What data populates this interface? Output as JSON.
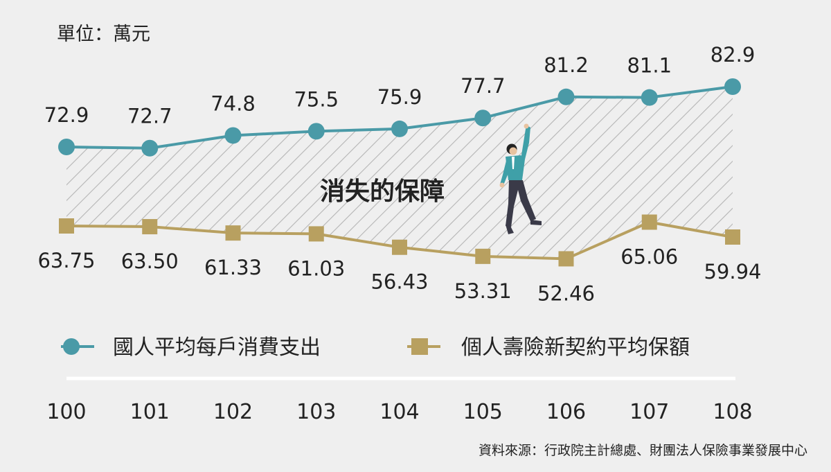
{
  "unit_label": "單位：萬元",
  "area_label": "消失的保障",
  "source": "資料來源：行政院主計總處、財團法人保險事業發展中心",
  "colors": {
    "background": "#efefef",
    "series1": "#4a9aa7",
    "series2": "#b8a060",
    "hatch": "#b5b5b5",
    "text": "#222222",
    "figure_jacket": "#3fa0a8",
    "figure_pants": "#3a3a48"
  },
  "chart_data": {
    "type": "line",
    "categories": [
      "100",
      "101",
      "102",
      "103",
      "104",
      "105",
      "106",
      "107",
      "108"
    ],
    "series": [
      {
        "name": "國人平均每戶消費支出",
        "values": [
          72.9,
          72.7,
          74.8,
          75.5,
          75.9,
          77.7,
          81.2,
          81.1,
          82.9
        ],
        "labels": [
          "72.9",
          "72.7",
          "74.8",
          "75.5",
          "75.9",
          "77.7",
          "81.2",
          "81.1",
          "82.9"
        ],
        "marker": "circle"
      },
      {
        "name": "個人壽險新契約平均保額",
        "values": [
          63.75,
          63.5,
          61.33,
          61.03,
          56.43,
          53.31,
          52.46,
          65.06,
          59.94
        ],
        "labels": [
          "63.75",
          "63.50",
          "61.33",
          "61.03",
          "56.43",
          "53.31",
          "52.46",
          "65.06",
          "59.94"
        ],
        "marker": "square"
      }
    ],
    "unit": "萬元",
    "shaded_area_between_series": true,
    "grid": false,
    "legend_position": "bottom"
  }
}
